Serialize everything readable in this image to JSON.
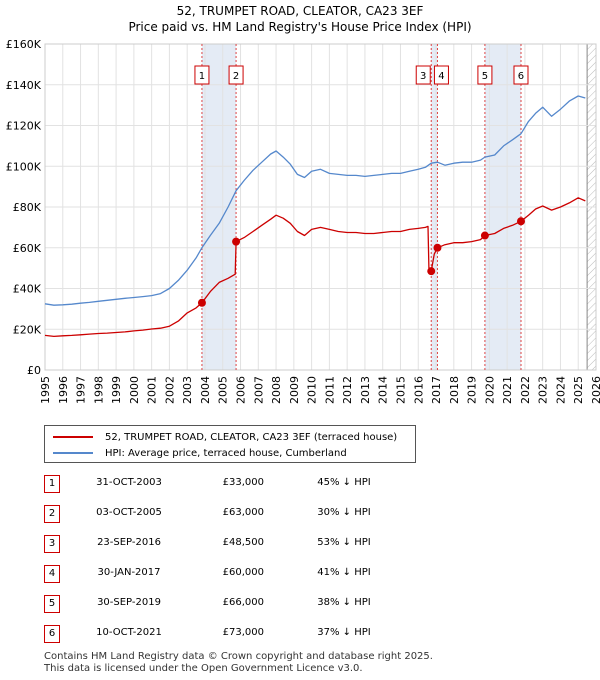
{
  "title_line1": "52, TRUMPET ROAD, CLEATOR, CA23 3EF",
  "title_line2": "Price paid vs. HM Land Registry's House Price Index (HPI)",
  "chart_data": {
    "type": "line",
    "x_range": [
      1995,
      2026
    ],
    "y_range": [
      0,
      160000
    ],
    "y_ticks": [
      0,
      20000,
      40000,
      60000,
      80000,
      100000,
      120000,
      140000,
      160000
    ],
    "y_tick_labels": [
      "£0",
      "£20K",
      "£40K",
      "£60K",
      "£80K",
      "£100K",
      "£120K",
      "£140K",
      "£160K"
    ],
    "x_ticks": [
      1995,
      1996,
      1997,
      1998,
      1999,
      2000,
      2001,
      2002,
      2003,
      2004,
      2005,
      2006,
      2007,
      2008,
      2009,
      2010,
      2011,
      2012,
      2013,
      2014,
      2015,
      2016,
      2017,
      2018,
      2019,
      2020,
      2021,
      2022,
      2023,
      2024,
      2025,
      2026
    ],
    "series": [
      {
        "name": "52, TRUMPET ROAD, CLEATOR, CA23 3EF (terraced house)",
        "color": "#cc0000",
        "points": [
          [
            1995.0,
            17000
          ],
          [
            1995.5,
            16500
          ],
          [
            1996.0,
            16800
          ],
          [
            1996.5,
            17000
          ],
          [
            1997.0,
            17300
          ],
          [
            1997.5,
            17600
          ],
          [
            1998.0,
            17900
          ],
          [
            1998.5,
            18100
          ],
          [
            1999.0,
            18400
          ],
          [
            1999.5,
            18700
          ],
          [
            2000.0,
            19200
          ],
          [
            2000.5,
            19600
          ],
          [
            2001.0,
            20100
          ],
          [
            2001.5,
            20500
          ],
          [
            2002.0,
            21500
          ],
          [
            2002.5,
            24000
          ],
          [
            2003.0,
            28000
          ],
          [
            2003.5,
            30500
          ],
          [
            2003.83,
            33000
          ],
          [
            2004.3,
            38500
          ],
          [
            2004.8,
            43000
          ],
          [
            2005.3,
            45000
          ],
          [
            2005.7,
            47000
          ],
          [
            2005.75,
            63000
          ],
          [
            2006.2,
            65000
          ],
          [
            2006.7,
            68000
          ],
          [
            2007.2,
            71000
          ],
          [
            2007.7,
            74000
          ],
          [
            2008.0,
            76000
          ],
          [
            2008.4,
            74500
          ],
          [
            2008.8,
            72000
          ],
          [
            2009.2,
            68000
          ],
          [
            2009.6,
            66000
          ],
          [
            2010.0,
            69000
          ],
          [
            2010.5,
            70000
          ],
          [
            2011.0,
            69000
          ],
          [
            2011.5,
            68000
          ],
          [
            2012.0,
            67500
          ],
          [
            2012.5,
            67500
          ],
          [
            2013.0,
            67000
          ],
          [
            2013.5,
            67000
          ],
          [
            2014.0,
            67500
          ],
          [
            2014.5,
            68000
          ],
          [
            2015.0,
            68000
          ],
          [
            2015.5,
            69000
          ],
          [
            2016.0,
            69500
          ],
          [
            2016.4,
            70000
          ],
          [
            2016.55,
            70500
          ],
          [
            2016.6,
            50000
          ],
          [
            2016.73,
            48500
          ],
          [
            2016.9,
            57000
          ],
          [
            2017.08,
            60000
          ],
          [
            2017.5,
            61500
          ],
          [
            2018.0,
            62500
          ],
          [
            2018.5,
            62500
          ],
          [
            2019.0,
            63000
          ],
          [
            2019.5,
            64000
          ],
          [
            2019.75,
            66000
          ],
          [
            2020.3,
            67000
          ],
          [
            2020.8,
            69500
          ],
          [
            2021.3,
            71000
          ],
          [
            2021.78,
            73000
          ],
          [
            2022.2,
            76000
          ],
          [
            2022.6,
            79000
          ],
          [
            2023.0,
            80500
          ],
          [
            2023.5,
            78500
          ],
          [
            2024.0,
            80000
          ],
          [
            2024.5,
            82000
          ],
          [
            2025.0,
            84500
          ],
          [
            2025.4,
            83000
          ]
        ]
      },
      {
        "name": "HPI: Average price, terraced house, Cumberland",
        "color": "#5588cc",
        "points": [
          [
            1995.0,
            32500
          ],
          [
            1995.5,
            31800
          ],
          [
            1996.0,
            32000
          ],
          [
            1996.5,
            32300
          ],
          [
            1997.0,
            32800
          ],
          [
            1997.5,
            33200
          ],
          [
            1998.0,
            33700
          ],
          [
            1998.5,
            34200
          ],
          [
            1999.0,
            34700
          ],
          [
            1999.5,
            35200
          ],
          [
            2000.0,
            35600
          ],
          [
            2000.5,
            36000
          ],
          [
            2001.0,
            36500
          ],
          [
            2001.5,
            37500
          ],
          [
            2002.0,
            40000
          ],
          [
            2002.5,
            44000
          ],
          [
            2003.0,
            49000
          ],
          [
            2003.5,
            55000
          ],
          [
            2003.83,
            60000
          ],
          [
            2004.3,
            66000
          ],
          [
            2004.8,
            72000
          ],
          [
            2005.3,
            80000
          ],
          [
            2005.75,
            88000
          ],
          [
            2006.2,
            93000
          ],
          [
            2006.7,
            98000
          ],
          [
            2007.2,
            102000
          ],
          [
            2007.7,
            106000
          ],
          [
            2008.0,
            107500
          ],
          [
            2008.4,
            104500
          ],
          [
            2008.8,
            101000
          ],
          [
            2009.2,
            96000
          ],
          [
            2009.6,
            94500
          ],
          [
            2010.0,
            97500
          ],
          [
            2010.5,
            98500
          ],
          [
            2011.0,
            96500
          ],
          [
            2011.5,
            96000
          ],
          [
            2012.0,
            95500
          ],
          [
            2012.5,
            95500
          ],
          [
            2013.0,
            95000
          ],
          [
            2013.5,
            95500
          ],
          [
            2014.0,
            96000
          ],
          [
            2014.5,
            96500
          ],
          [
            2015.0,
            96500
          ],
          [
            2015.5,
            97500
          ],
          [
            2016.0,
            98500
          ],
          [
            2016.4,
            99500
          ],
          [
            2016.73,
            101500
          ],
          [
            2017.08,
            102000
          ],
          [
            2017.5,
            100500
          ],
          [
            2018.0,
            101500
          ],
          [
            2018.5,
            102000
          ],
          [
            2019.0,
            102000
          ],
          [
            2019.5,
            103000
          ],
          [
            2019.75,
            104500
          ],
          [
            2020.3,
            105500
          ],
          [
            2020.8,
            110000
          ],
          [
            2021.3,
            113000
          ],
          [
            2021.78,
            116000
          ],
          [
            2022.2,
            122000
          ],
          [
            2022.6,
            126000
          ],
          [
            2023.0,
            129000
          ],
          [
            2023.5,
            124500
          ],
          [
            2024.0,
            128000
          ],
          [
            2024.5,
            132000
          ],
          [
            2025.0,
            134500
          ],
          [
            2025.4,
            133500
          ]
        ]
      }
    ],
    "transactions": [
      {
        "num": "1",
        "year": 2003.83,
        "price": 33000
      },
      {
        "num": "2",
        "year": 2005.75,
        "price": 63000
      },
      {
        "num": "3",
        "year": 2016.73,
        "price": 48500
      },
      {
        "num": "4",
        "year": 2017.08,
        "price": 60000
      },
      {
        "num": "5",
        "year": 2019.75,
        "price": 66000
      },
      {
        "num": "6",
        "year": 2021.78,
        "price": 73000
      }
    ],
    "shaded_ranges": [
      [
        2003.83,
        2005.75
      ],
      [
        2016.73,
        2017.08
      ],
      [
        2019.75,
        2021.78
      ]
    ],
    "future_start": 2025.5
  },
  "legend": {
    "property_label": "52, TRUMPET ROAD, CLEATOR, CA23 3EF (terraced house)",
    "hpi_label": "HPI: Average price, terraced house, Cumberland"
  },
  "table": [
    {
      "num": "1",
      "date": "31-OCT-2003",
      "price": "£33,000",
      "hpi": "45% ↓ HPI"
    },
    {
      "num": "2",
      "date": "03-OCT-2005",
      "price": "£63,000",
      "hpi": "30% ↓ HPI"
    },
    {
      "num": "3",
      "date": "23-SEP-2016",
      "price": "£48,500",
      "hpi": "53% ↓ HPI"
    },
    {
      "num": "4",
      "date": "30-JAN-2017",
      "price": "£60,000",
      "hpi": "41% ↓ HPI"
    },
    {
      "num": "5",
      "date": "30-SEP-2019",
      "price": "£66,000",
      "hpi": "38% ↓ HPI"
    },
    {
      "num": "6",
      "date": "10-OCT-2021",
      "price": "£73,000",
      "hpi": "37% ↓ HPI"
    }
  ],
  "footer_line1": "Contains HM Land Registry data © Crown copyright and database right 2025.",
  "footer_line2": "This data is licensed under the Open Government Licence v3.0."
}
